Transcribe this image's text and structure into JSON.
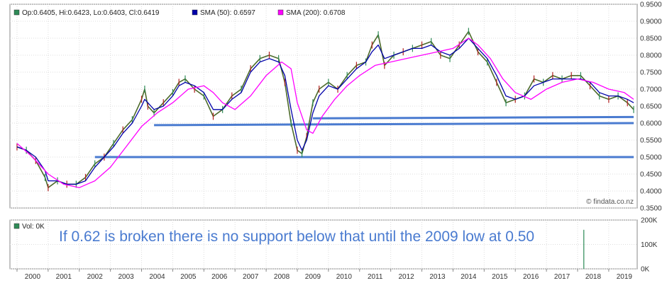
{
  "chart_data": [
    {
      "type": "line",
      "subtype": "price-candlestick-with-moving-averages",
      "x_range": [
        1999.75,
        2019.8
      ],
      "ylim": [
        0.35,
        0.95
      ],
      "y_ticks": [
        "0.9500",
        "0.9000",
        "0.8500",
        "0.8000",
        "0.7500",
        "0.7000",
        "0.6500",
        "0.6000",
        "0.5500",
        "0.5000",
        "0.4500",
        "0.4000",
        "0.3500"
      ],
      "x_ticks": [
        "2000",
        "2001",
        "2002",
        "2003",
        "2004",
        "2005",
        "2006",
        "2007",
        "2008",
        "2009",
        "2010",
        "2011",
        "2012",
        "2013",
        "2014",
        "2015",
        "2016",
        "2017",
        "2018",
        "2019"
      ],
      "grid": true,
      "legend": [
        {
          "marker_color": "#2e8b57",
          "text": "Op:0.6405, Hi:0.6423, Lo:0.6403, Cl:0.6419"
        },
        {
          "marker_color": "#0000aa",
          "text": "SMA (50): 0.6597"
        },
        {
          "marker_color": "#ff00ff",
          "text": "SMA (200): 0.6708"
        }
      ],
      "series": [
        {
          "name": "Price",
          "color": "#4c6a2a",
          "x": [
            2000.0,
            2000.3,
            2000.6,
            2000.9,
            2001.0,
            2001.3,
            2001.6,
            2001.9,
            2002.2,
            2002.5,
            2002.8,
            2003.1,
            2003.4,
            2003.7,
            2004.0,
            2004.1,
            2004.2,
            2004.4,
            2004.7,
            2005.0,
            2005.2,
            2005.4,
            2005.7,
            2006.0,
            2006.3,
            2006.6,
            2006.9,
            2007.2,
            2007.5,
            2007.8,
            2008.1,
            2008.4,
            2008.6,
            2008.8,
            2009.0,
            2009.15,
            2009.3,
            2009.5,
            2009.7,
            2010.0,
            2010.3,
            2010.6,
            2010.9,
            2011.2,
            2011.4,
            2011.6,
            2011.8,
            2012.1,
            2012.4,
            2012.7,
            2013.0,
            2013.3,
            2013.6,
            2013.9,
            2014.2,
            2014.5,
            2014.8,
            2015.1,
            2015.4,
            2015.7,
            2016.0,
            2016.3,
            2016.6,
            2016.9,
            2017.2,
            2017.5,
            2017.8,
            2018.1,
            2018.4,
            2018.7,
            2019.0,
            2019.3,
            2019.6,
            2019.8
          ],
          "values": [
            0.53,
            0.52,
            0.49,
            0.44,
            0.41,
            0.43,
            0.42,
            0.42,
            0.44,
            0.48,
            0.5,
            0.54,
            0.58,
            0.61,
            0.67,
            0.7,
            0.65,
            0.63,
            0.66,
            0.69,
            0.72,
            0.73,
            0.7,
            0.68,
            0.62,
            0.64,
            0.68,
            0.7,
            0.76,
            0.79,
            0.8,
            0.79,
            0.72,
            0.6,
            0.52,
            0.51,
            0.56,
            0.66,
            0.7,
            0.72,
            0.7,
            0.74,
            0.77,
            0.78,
            0.83,
            0.86,
            0.77,
            0.8,
            0.81,
            0.82,
            0.83,
            0.84,
            0.8,
            0.79,
            0.83,
            0.87,
            0.81,
            0.78,
            0.72,
            0.66,
            0.67,
            0.68,
            0.73,
            0.72,
            0.74,
            0.73,
            0.74,
            0.74,
            0.71,
            0.68,
            0.67,
            0.68,
            0.66,
            0.64
          ]
        },
        {
          "name": "SMA (50)",
          "color": "#0000aa",
          "x": [
            2000.0,
            2000.3,
            2000.6,
            2000.9,
            2001.0,
            2001.3,
            2001.6,
            2001.9,
            2002.2,
            2002.5,
            2002.8,
            2003.1,
            2003.4,
            2003.7,
            2004.0,
            2004.1,
            2004.2,
            2004.4,
            2004.7,
            2005.0,
            2005.2,
            2005.4,
            2005.7,
            2006.0,
            2006.3,
            2006.6,
            2006.9,
            2007.2,
            2007.5,
            2007.8,
            2008.1,
            2008.4,
            2008.6,
            2008.8,
            2009.0,
            2009.15,
            2009.3,
            2009.5,
            2009.7,
            2010.0,
            2010.3,
            2010.6,
            2010.9,
            2011.2,
            2011.4,
            2011.6,
            2011.8,
            2012.1,
            2012.4,
            2012.7,
            2013.0,
            2013.3,
            2013.6,
            2013.9,
            2014.2,
            2014.5,
            2014.8,
            2015.1,
            2015.4,
            2015.7,
            2016.0,
            2016.3,
            2016.6,
            2016.9,
            2017.2,
            2017.5,
            2017.8,
            2018.1,
            2018.4,
            2018.7,
            2019.0,
            2019.3,
            2019.6,
            2019.8
          ],
          "values": [
            0.53,
            0.52,
            0.5,
            0.46,
            0.43,
            0.43,
            0.42,
            0.42,
            0.43,
            0.47,
            0.5,
            0.53,
            0.57,
            0.6,
            0.65,
            0.67,
            0.66,
            0.64,
            0.65,
            0.68,
            0.71,
            0.72,
            0.71,
            0.69,
            0.64,
            0.64,
            0.67,
            0.69,
            0.75,
            0.78,
            0.79,
            0.78,
            0.74,
            0.64,
            0.55,
            0.52,
            0.55,
            0.63,
            0.68,
            0.71,
            0.7,
            0.73,
            0.76,
            0.78,
            0.81,
            0.83,
            0.79,
            0.8,
            0.81,
            0.82,
            0.82,
            0.83,
            0.81,
            0.8,
            0.82,
            0.85,
            0.82,
            0.79,
            0.74,
            0.68,
            0.67,
            0.68,
            0.71,
            0.72,
            0.73,
            0.73,
            0.73,
            0.73,
            0.72,
            0.69,
            0.68,
            0.68,
            0.67,
            0.66
          ]
        },
        {
          "name": "SMA (200)",
          "color": "#ff00ff",
          "x": [
            2000.0,
            2000.5,
            2001.0,
            2001.5,
            2002.0,
            2002.5,
            2003.0,
            2003.5,
            2004.0,
            2004.5,
            2005.0,
            2005.5,
            2006.0,
            2006.3,
            2006.6,
            2007.0,
            2007.5,
            2008.0,
            2008.5,
            2008.8,
            2009.0,
            2009.3,
            2009.5,
            2009.8,
            2010.2,
            2010.6,
            2011.0,
            2011.5,
            2012.0,
            2012.5,
            2013.0,
            2013.5,
            2014.0,
            2014.5,
            2014.8,
            2015.2,
            2015.6,
            2016.0,
            2016.5,
            2017.0,
            2017.5,
            2018.0,
            2018.5,
            2019.0,
            2019.5,
            2019.8
          ],
          "values": [
            0.54,
            0.5,
            0.45,
            0.42,
            0.41,
            0.43,
            0.47,
            0.53,
            0.59,
            0.63,
            0.66,
            0.7,
            0.71,
            0.69,
            0.66,
            0.64,
            0.68,
            0.74,
            0.78,
            0.76,
            0.66,
            0.58,
            0.57,
            0.62,
            0.67,
            0.71,
            0.74,
            0.77,
            0.78,
            0.79,
            0.8,
            0.81,
            0.82,
            0.85,
            0.83,
            0.79,
            0.73,
            0.69,
            0.67,
            0.7,
            0.72,
            0.73,
            0.72,
            0.7,
            0.69,
            0.67
          ]
        }
      ],
      "horizontal_lines": [
        {
          "from": [
            2002.5,
            0.5
          ],
          "to": [
            2019.8,
            0.5
          ]
        },
        {
          "from": [
            2004.4,
            0.594
          ],
          "to": [
            2019.8,
            0.6
          ]
        },
        {
          "from": [
            2009.5,
            0.614
          ],
          "to": [
            2019.8,
            0.618
          ]
        }
      ],
      "credit": "© findata.co.nz"
    },
    {
      "type": "bar",
      "legend": [
        {
          "marker_color": "#2e8b57",
          "text": "Vol: 0K"
        }
      ],
      "ylim": [
        0,
        200000
      ],
      "y_ticks": [
        "200K",
        "100K",
        "0K"
      ],
      "bars": [
        {
          "x": 2018.2,
          "value": 160000
        }
      ],
      "annotation": "If 0.62 is broken there is no support below that until the 2009 low at 0.50"
    }
  ]
}
